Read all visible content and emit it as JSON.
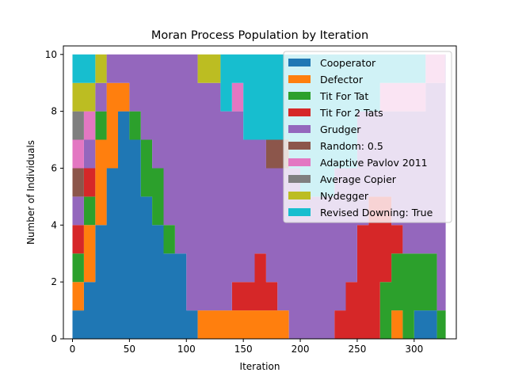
{
  "chart_data": {
    "type": "area",
    "stacked": true,
    "title": "Moran Process Population by Iteration",
    "xlabel": "Iteration",
    "ylabel": "Number of Individuals",
    "xlim": [
      -8,
      337
    ],
    "ylim": [
      0,
      10.3
    ],
    "xticks": [
      0,
      50,
      100,
      150,
      200,
      250,
      300
    ],
    "yticks": [
      0,
      2,
      4,
      6,
      8,
      10
    ],
    "legend_position": "top-right",
    "x": [
      0,
      10,
      20,
      30,
      40,
      50,
      60,
      70,
      80,
      90,
      100,
      110,
      120,
      130,
      140,
      150,
      160,
      170,
      180,
      190,
      200,
      210,
      220,
      230,
      240,
      250,
      260,
      270,
      280,
      290,
      300,
      310,
      320,
      327
    ],
    "series": [
      {
        "name": "Cooperator",
        "color": "#1f77b4",
        "values": [
          1,
          2,
          4,
          6,
          8,
          7,
          5,
          4,
          3,
          3,
          1,
          0,
          0,
          0,
          0,
          0,
          0,
          0,
          0,
          0,
          0,
          0,
          0,
          0,
          0,
          0,
          0,
          0,
          0,
          0,
          1,
          1,
          0,
          0
        ]
      },
      {
        "name": "Defector",
        "color": "#ff7f0e",
        "values": [
          1,
          2,
          3,
          3,
          1,
          0,
          0,
          0,
          0,
          0,
          0,
          1,
          1,
          1,
          1,
          1,
          1,
          1,
          1,
          0,
          0,
          0,
          0,
          0,
          0,
          0,
          0,
          0,
          1,
          0,
          0,
          0,
          0,
          0
        ]
      },
      {
        "name": "Tit For Tat",
        "color": "#2ca02c",
        "values": [
          1,
          1,
          1,
          0,
          0,
          1,
          2,
          2,
          1,
          0,
          0,
          0,
          0,
          0,
          0,
          0,
          0,
          0,
          0,
          0,
          0,
          0,
          0,
          0,
          0,
          0,
          0,
          2,
          2,
          3,
          2,
          2,
          1,
          1
        ]
      },
      {
        "name": "Tit For 2 Tats",
        "color": "#d62728",
        "values": [
          1,
          1,
          0,
          0,
          0,
          0,
          0,
          0,
          0,
          0,
          0,
          0,
          0,
          0,
          1,
          1,
          2,
          1,
          0,
          0,
          0,
          0,
          0,
          1,
          2,
          4,
          5,
          3,
          1,
          0,
          0,
          0,
          0,
          0
        ]
      },
      {
        "name": "Grudger",
        "color": "#9467bd",
        "values": [
          1,
          1,
          1,
          1,
          1,
          2,
          3,
          4,
          6,
          7,
          9,
          8,
          8,
          7,
          6,
          5,
          4,
          4,
          5,
          6,
          5,
          5,
          5,
          5,
          4,
          4,
          3,
          3,
          4,
          5,
          5,
          6,
          8,
          9
        ]
      },
      {
        "name": "Random: 0.5",
        "color": "#8c564b",
        "values": [
          1,
          0,
          0,
          0,
          0,
          0,
          0,
          0,
          0,
          0,
          0,
          0,
          0,
          0,
          0,
          0,
          0,
          1,
          1,
          0,
          0,
          0,
          0,
          0,
          0,
          0,
          0,
          0,
          0,
          0,
          0,
          0,
          0,
          0
        ]
      },
      {
        "name": "Adaptive Pavlov 2011",
        "color": "#e377c2",
        "values": [
          1,
          1,
          0,
          0,
          0,
          0,
          0,
          0,
          0,
          0,
          0,
          0,
          0,
          0,
          1,
          0,
          0,
          0,
          0,
          0,
          0,
          0,
          0,
          0,
          0,
          0,
          0,
          1,
          1,
          1,
          1,
          1,
          1,
          0
        ]
      },
      {
        "name": "Average Copier",
        "color": "#7f7f7f",
        "values": [
          1,
          0,
          0,
          0,
          0,
          0,
          0,
          0,
          0,
          0,
          0,
          0,
          0,
          0,
          0,
          0,
          0,
          0,
          0,
          0,
          0,
          0,
          0,
          0,
          0,
          0,
          0,
          0,
          0,
          0,
          0,
          0,
          0,
          0
        ]
      },
      {
        "name": "Nydegger",
        "color": "#bcbd22",
        "values": [
          1,
          1,
          1,
          0,
          0,
          0,
          0,
          0,
          0,
          0,
          0,
          1,
          1,
          0,
          0,
          0,
          0,
          0,
          0,
          0,
          0,
          0,
          0,
          0,
          0,
          0,
          0,
          0,
          0,
          0,
          0,
          0,
          0,
          0
        ]
      },
      {
        "name": "Revised Downing: True",
        "color": "#17becf",
        "values": [
          1,
          1,
          0,
          0,
          0,
          0,
          0,
          0,
          0,
          0,
          0,
          0,
          0,
          2,
          1,
          3,
          3,
          3,
          3,
          4,
          5,
          5,
          5,
          4,
          4,
          2,
          2,
          1,
          1,
          1,
          1,
          0,
          0,
          0
        ]
      }
    ]
  }
}
